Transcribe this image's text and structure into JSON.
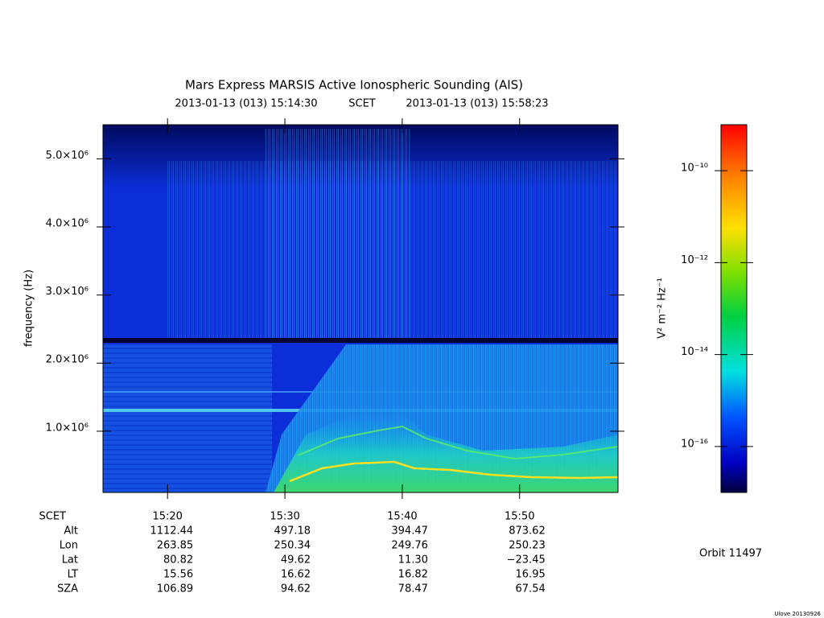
{
  "chart_data": {
    "type": "spectrogram",
    "title": "Mars Express MARSIS Active Ionospheric Sounding (AIS)",
    "xlabel": "SCET",
    "xlim": [
      "2013-01-13 (013) 15:14:30",
      "2013-01-13 (013) 15:58:23"
    ],
    "xticks": [
      "15:20",
      "15:30",
      "15:40",
      "15:50"
    ],
    "ylabel": "frequency (Hz)",
    "ylim": [
      100000,
      5500000
    ],
    "yticks": [
      {
        "value": 1000000,
        "label": "1.0×10⁶"
      },
      {
        "value": 2000000,
        "label": "2.0×10⁶"
      },
      {
        "value": 3000000,
        "label": "3.0×10⁶"
      },
      {
        "value": 4000000,
        "label": "4.0×10⁶"
      },
      {
        "value": 5000000,
        "label": "5.0×10⁶"
      }
    ],
    "ephemeris": [
      {
        "name": "Alt",
        "values": [
          "1112.44",
          "497.18",
          "394.47",
          "873.62"
        ]
      },
      {
        "name": "Lon",
        "values": [
          "263.85",
          "250.34",
          "249.76",
          "250.23"
        ]
      },
      {
        "name": "Lat",
        "values": [
          "80.82",
          "49.62",
          "11.30",
          "−23.45"
        ]
      },
      {
        "name": "LT",
        "values": [
          "15.56",
          "16.62",
          "16.82",
          "16.95"
        ]
      },
      {
        "name": "SZA",
        "values": [
          "106.89",
          "94.62",
          "78.47",
          "67.54"
        ]
      }
    ],
    "colorbar": {
      "label": "V² m⁻² Hz⁻¹",
      "log": true,
      "lim": [
        1e-17,
        1e-09
      ],
      "ticks": [
        {
          "value": 1e-10,
          "label": "10⁻¹⁰"
        },
        {
          "value": 1e-12,
          "label": "10⁻¹²"
        },
        {
          "value": 1e-14,
          "label": "10⁻¹⁴"
        },
        {
          "value": 1e-16,
          "label": "10⁻¹⁶"
        }
      ]
    },
    "orbit": "Orbit 11497",
    "footer": "Ulove 20130926"
  }
}
